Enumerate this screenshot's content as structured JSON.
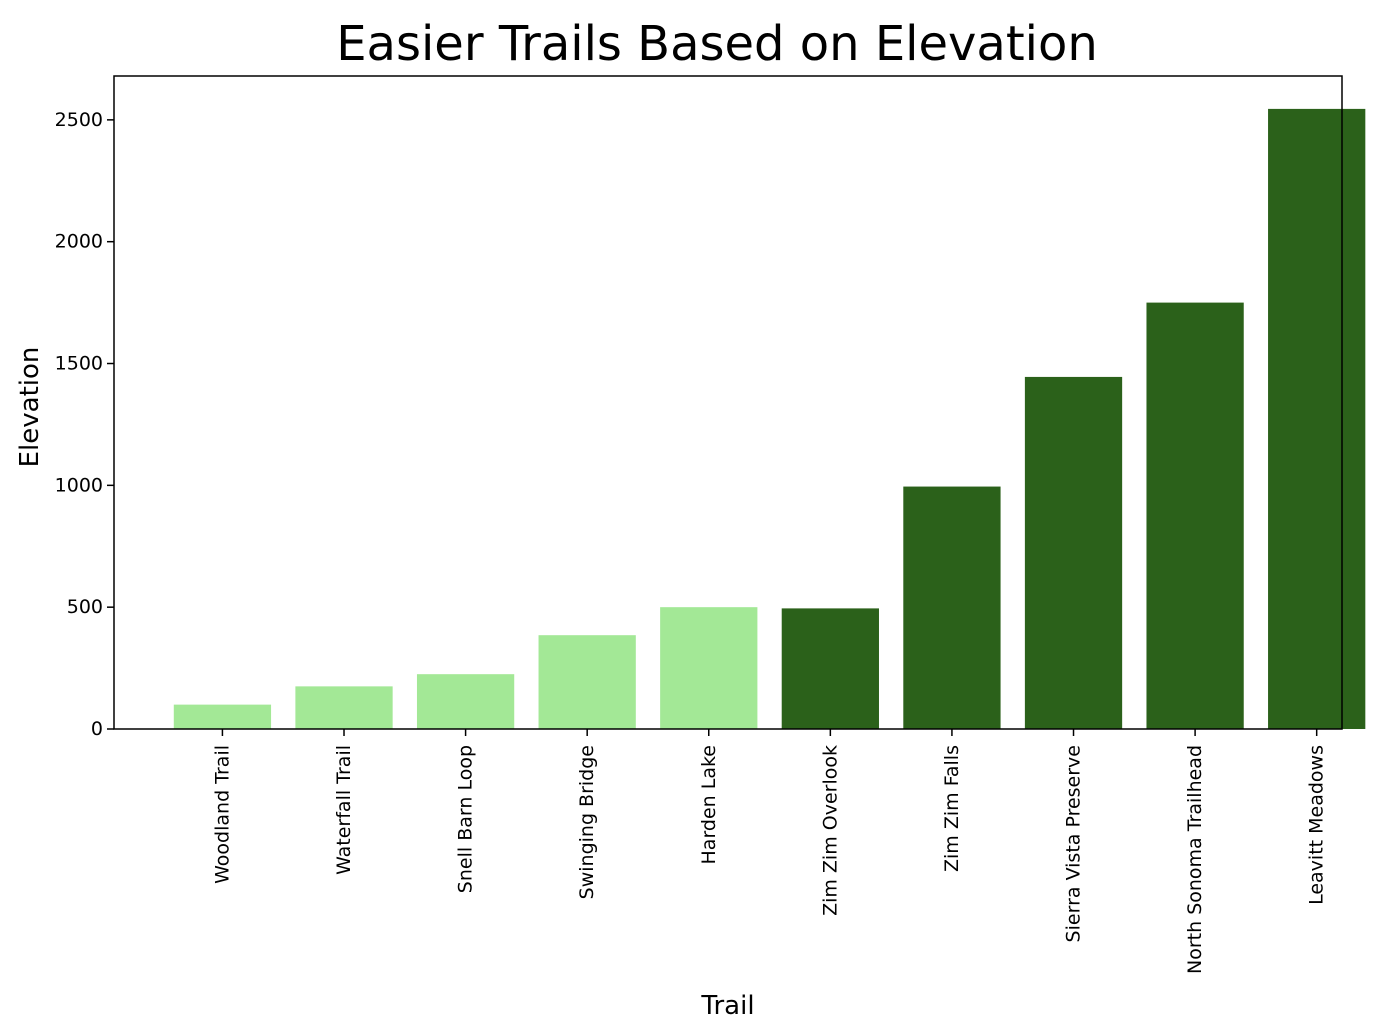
{
  "chart_data": {
    "type": "bar",
    "title": "Easier Trails Based on Elevation",
    "xlabel": "Trail",
    "ylabel": "Elevation",
    "categories": [
      "Woodland Trail",
      "Waterfall Trail",
      "Snell Barn Loop",
      "Swinging Bridge",
      "Harden Lake",
      "Zim Zim Overlook",
      "Zim Zim Falls",
      "Sierra Vista Preserve",
      "North Sonoma Trailhead",
      "Leavitt Meadows"
    ],
    "values": [
      100,
      175,
      225,
      385,
      500,
      495,
      995,
      1445,
      1750,
      2545
    ],
    "bar_colors": [
      "#a3e896",
      "#a3e896",
      "#a3e896",
      "#a3e896",
      "#a3e896",
      "#2b611a",
      "#2b611a",
      "#2b611a",
      "#2b611a",
      "#2b611a"
    ],
    "ylim": [
      0,
      2680
    ],
    "yticks": [
      0,
      500,
      1000,
      1500,
      2000,
      2500
    ],
    "grid": false,
    "legend": "none"
  }
}
